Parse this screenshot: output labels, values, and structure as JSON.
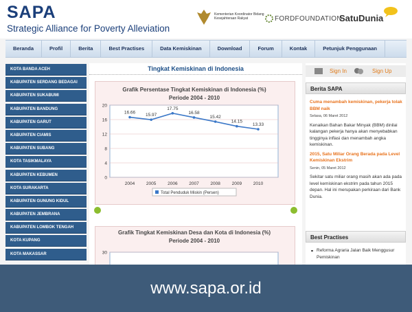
{
  "header": {
    "title": "SAPA",
    "subtitle": "Strategic Alliance for Poverty Alleviation",
    "partners": [
      "Kementerian Koordinator Bidang Kesejahteraan Rakyat",
      "FORDFOUNDATION",
      "SatuDunia"
    ]
  },
  "nav": [
    "Beranda",
    "Profil",
    "Berita",
    "Best Practises",
    "Data Kemiskinan",
    "Download",
    "Forum",
    "Kontak",
    "Petunjuk Penggunaan"
  ],
  "sidebar": [
    "KOTA BANDA ACEH",
    "KABUPATEN SERDANG BEDAGAI",
    "KABUPATEN SUKABUMI",
    "KABUPATEN BANDUNG",
    "KABUPATEN GARUT",
    "KABUPATEN CIAMIS",
    "KABUPATEN SUBANG",
    "KOTA TASIKMALAYA",
    "KABUPATEN KEBUMEN",
    "KOTA SURAKARTA",
    "KABUPATEN GUNUNG KIDUL",
    "KABUPATEN JEMBRANA",
    "KABUPATEN LOMBOK TENGAH",
    "KOTA KUPANG",
    "KOTA MAKASSAR"
  ],
  "main": {
    "heading": "Tingkat Kemiskinan di Indonesia",
    "chart": {
      "type": "line",
      "title": "Grafik Persentase Tingkat Kemiskinan di Indonesia (%)",
      "subtitle": "Periode 2004 - 2010",
      "categories": [
        "2004",
        "2005",
        "2006",
        "2007",
        "2008",
        "2009",
        "2010"
      ],
      "series": [
        {
          "name": "Total Penduduk Miskin (Persen)",
          "color": "#3b78c8",
          "values": [
            16.66,
            15.97,
            17.75,
            16.58,
            15.42,
            14.15,
            13.33
          ]
        }
      ],
      "ylim": [
        0,
        20
      ],
      "yticks": [
        0,
        4,
        8,
        12,
        16,
        20
      ],
      "grid": true
    },
    "chart2": {
      "title": "Grafik Tingkat Kemiskinan Desa dan Kota di Indonesia (%)",
      "subtitle": "Periode 2004 - 2010",
      "yticks": [
        30
      ]
    }
  },
  "right": {
    "sign_in": "Sign In",
    "sign_up": "Sign Up",
    "news_heading": "Berita SAPA",
    "news": [
      {
        "title": "Cuma menambah kemiskinan, pekerja tolak BBM naik",
        "date": "Selasa, 06 Maret 2012",
        "text": "Kenaikan Bahan Bakar Minyak (BBM) dinilai kalangan pekerja hanya akan menyebabkan tingginya inflasi dan menambah angka kemiskinan."
      },
      {
        "title": "2015, Satu Miliar Orang Berada pada Level Kemiskinan Ekstrim",
        "date": "Senin, 05 Maret 2012",
        "text": "Sekitar satu miliar orang masih akan ada pada level kemiskinan ekstrim pada tahun 2015 depan. Hal ini merupakan perkiraan dari Bank Dunia."
      }
    ],
    "best_heading": "Best Practises",
    "best": [
      "Reforma Agraria Jalan Baik Menggusur Pemiskinan"
    ]
  },
  "footer": {
    "url": "www.sapa.or.id"
  }
}
